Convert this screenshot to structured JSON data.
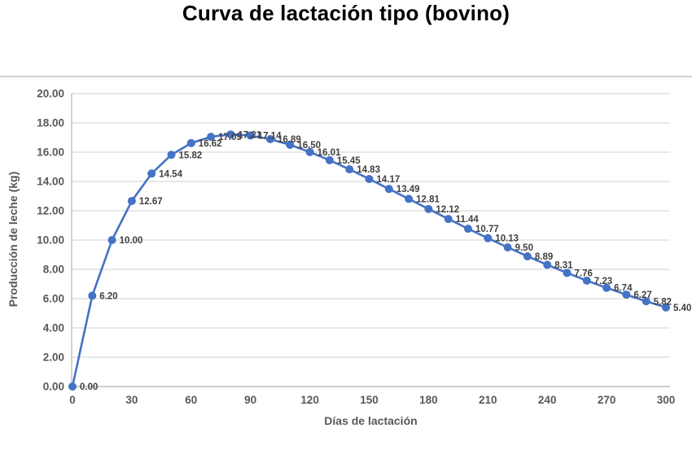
{
  "chart_data": {
    "type": "line",
    "title": "Curva de lactación tipo (bovino)",
    "xlabel": "Días de lactación",
    "ylabel": "Producción de leche (kg)",
    "x": [
      0,
      10,
      20,
      30,
      40,
      50,
      60,
      70,
      80,
      90,
      100,
      110,
      120,
      130,
      140,
      150,
      160,
      170,
      180,
      190,
      200,
      210,
      220,
      230,
      240,
      250,
      260,
      270,
      280,
      290,
      300
    ],
    "values": [
      0.0,
      6.2,
      10.0,
      12.67,
      14.54,
      15.82,
      16.62,
      17.05,
      17.21,
      17.14,
      16.89,
      16.5,
      16.01,
      15.45,
      14.83,
      14.17,
      13.49,
      12.81,
      12.12,
      11.44,
      10.77,
      10.13,
      9.5,
      8.89,
      8.31,
      7.76,
      7.23,
      6.74,
      6.27,
      5.82,
      5.4
    ],
    "point_labels": [
      "0.00",
      "6.20",
      "10.00",
      "12.67",
      "14.54",
      "15.82",
      "16.62",
      "17.05",
      "17.21",
      "17.14",
      "16.89",
      "16.50",
      "16.01",
      "15.45",
      "14.83",
      "14.17",
      "13.49",
      "12.81",
      "12.12",
      "11.44",
      "10.77",
      "10.13",
      "9.50",
      "8.89",
      "8.31",
      "7.76",
      "7.23",
      "6.74",
      "6.27",
      "5.82",
      "5.40"
    ],
    "x_ticks": [
      "0",
      "30",
      "60",
      "90",
      "120",
      "150",
      "180",
      "210",
      "240",
      "270",
      "300"
    ],
    "x_tick_values": [
      0,
      30,
      60,
      90,
      120,
      150,
      180,
      210,
      240,
      270,
      300
    ],
    "y_ticks": [
      "0.00",
      "2.00",
      "4.00",
      "6.00",
      "8.00",
      "10.00",
      "12.00",
      "14.00",
      "16.00",
      "18.00",
      "20.00"
    ],
    "y_tick_values": [
      0,
      2,
      4,
      6,
      8,
      10,
      12,
      14,
      16,
      18,
      20
    ],
    "xlim": [
      0,
      300
    ],
    "ylim": [
      0,
      20
    ],
    "grid": "horizontal",
    "legend": "none",
    "marker": "circle",
    "colors": {
      "series_line": "#4472C4",
      "marker_fill": "#4472C4",
      "gridline": "#D9D9D9",
      "axis_line": "#BFBFBF",
      "tick_text": "#595959",
      "point_label_text": "#404040",
      "title_text": "#000000"
    }
  }
}
